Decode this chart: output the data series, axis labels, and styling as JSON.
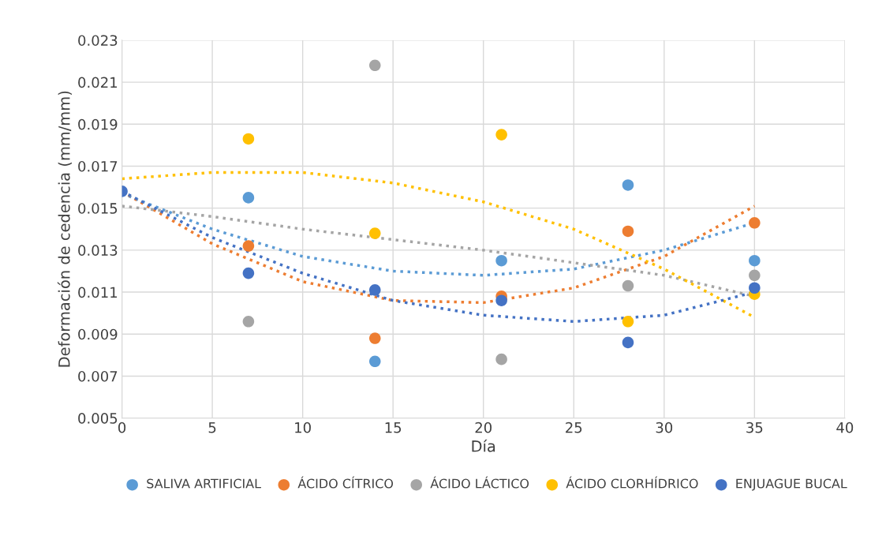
{
  "chart_data": {
    "type": "scatter",
    "xlabel": "Día",
    "ylabel": "Deformación de cedencia (mm/mm)",
    "xlim": [
      0,
      40
    ],
    "xticks": [
      0,
      5,
      10,
      15,
      20,
      25,
      30,
      35,
      40
    ],
    "ylim": [
      0.005,
      0.023
    ],
    "yticks": [
      0.005,
      0.007,
      0.009,
      0.011,
      0.013,
      0.015,
      0.017,
      0.019,
      0.021,
      0.023
    ],
    "grid": true,
    "legend": "bottom",
    "marker": "circle",
    "x": [
      0,
      7,
      14,
      21,
      28,
      35
    ],
    "series": [
      {
        "name": "SALIVA ARTIFICIAL",
        "color": "#5b9bd5",
        "values": [
          null,
          0.0155,
          0.0077,
          0.0125,
          0.0161,
          0.0125
        ]
      },
      {
        "name": "ÁCIDO CÍTRICO",
        "color": "#ed7d31",
        "values": [
          null,
          0.0132,
          0.0088,
          0.0108,
          0.0139,
          0.0143
        ]
      },
      {
        "name": "ÁCIDO LÁCTICO",
        "color": "#a5a5a5",
        "values": [
          null,
          0.0096,
          0.0218,
          0.0078,
          0.0113,
          0.0118
        ]
      },
      {
        "name": "ÁCIDO CLORHÍDRICO",
        "color": "#ffc000",
        "values": [
          null,
          0.0183,
          0.0138,
          0.0185,
          0.0096,
          0.0109
        ]
      },
      {
        "name": "ENJUAGUE BUCAL",
        "color": "#4472c4",
        "values": [
          0.0158,
          0.0119,
          0.0111,
          0.0106,
          0.0086,
          0.0112
        ]
      },
      {
        "type": "line",
        "marker": "none",
        "line_style": "dotted",
        "color": "#5b9bd5",
        "x": [
          0,
          5,
          10,
          15,
          20,
          25,
          30,
          35
        ],
        "values": [
          0.0157,
          0.014,
          0.0127,
          0.012,
          0.0118,
          0.0121,
          0.013,
          0.0143
        ]
      },
      {
        "type": "line",
        "marker": "none",
        "line_style": "dotted",
        "color": "#ed7d31",
        "x": [
          0,
          5,
          10,
          15,
          20,
          25,
          30,
          35
        ],
        "values": [
          0.0158,
          0.0133,
          0.0115,
          0.0106,
          0.0105,
          0.0112,
          0.0127,
          0.0151
        ]
      },
      {
        "type": "line",
        "marker": "none",
        "line_style": "dotted",
        "color": "#a5a5a5",
        "x": [
          0,
          5,
          10,
          15,
          20,
          25,
          30,
          35
        ],
        "values": [
          0.0151,
          0.0146,
          0.014,
          0.0135,
          0.013,
          0.0124,
          0.0118,
          0.0108
        ]
      },
      {
        "type": "line",
        "marker": "none",
        "line_style": "dotted",
        "color": "#ffc000",
        "x": [
          0,
          5,
          10,
          15,
          20,
          25,
          30,
          35
        ],
        "values": [
          0.0164,
          0.0167,
          0.0167,
          0.0162,
          0.0153,
          0.014,
          0.0121,
          0.0098
        ]
      },
      {
        "type": "line",
        "marker": "none",
        "line_style": "dotted",
        "color": "#4472c4",
        "x": [
          0,
          5,
          10,
          15,
          20,
          25,
          30,
          35
        ],
        "values": [
          0.0158,
          0.0136,
          0.0119,
          0.0106,
          0.0099,
          0.0096,
          0.0099,
          0.011
        ]
      }
    ]
  }
}
